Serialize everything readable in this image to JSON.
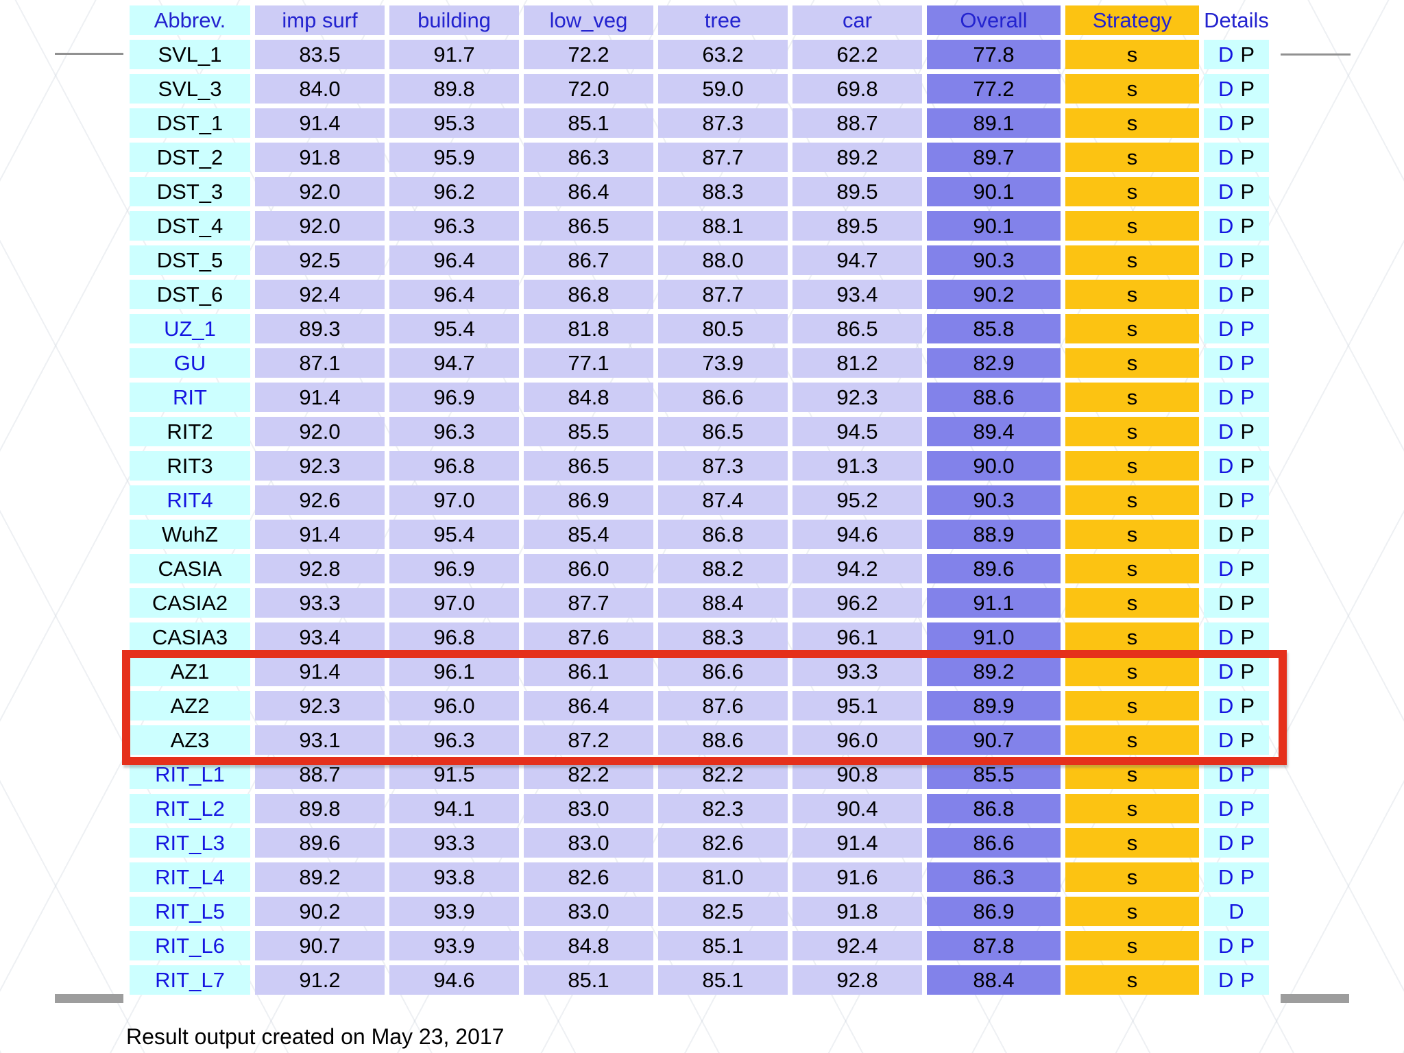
{
  "page": {
    "footer_note": "Result output created on May 23, 2017"
  },
  "colors": {
    "header_text": "#2323cf",
    "link_blue": "#1414e0",
    "cell_lavender": "#cdccf6",
    "cell_cyan": "#ccffff",
    "cell_overall_purple": "#8282ea",
    "cell_strategy_gold": "#fcc312",
    "annotation_red": "#e5301b"
  },
  "table": {
    "columns": [
      {
        "label": "Abbrev.",
        "type": "abbrev"
      },
      {
        "label": "imp surf",
        "type": "data"
      },
      {
        "label": "building",
        "type": "data"
      },
      {
        "label": "low_veg",
        "type": "data"
      },
      {
        "label": "tree",
        "type": "data"
      },
      {
        "label": "car",
        "type": "data"
      },
      {
        "label": "Overall",
        "type": "overall"
      },
      {
        "label": "Strategy",
        "type": "strategy"
      },
      {
        "label": "Details",
        "type": "details"
      }
    ],
    "rows": [
      {
        "abbrev": "SVL_1",
        "abbrev_link": false,
        "values": [
          "83.5",
          "91.7",
          "72.2",
          "63.2",
          "62.2"
        ],
        "overall": "77.8",
        "strategy": "s",
        "details": [
          {
            "label": "D",
            "link": true
          },
          {
            "label": "P",
            "link": false
          }
        ]
      },
      {
        "abbrev": "SVL_3",
        "abbrev_link": false,
        "values": [
          "84.0",
          "89.8",
          "72.0",
          "59.0",
          "69.8"
        ],
        "overall": "77.2",
        "strategy": "s",
        "details": [
          {
            "label": "D",
            "link": true
          },
          {
            "label": "P",
            "link": false
          }
        ]
      },
      {
        "abbrev": "DST_1",
        "abbrev_link": false,
        "values": [
          "91.4",
          "95.3",
          "85.1",
          "87.3",
          "88.7"
        ],
        "overall": "89.1",
        "strategy": "s",
        "details": [
          {
            "label": "D",
            "link": true
          },
          {
            "label": "P",
            "link": false
          }
        ]
      },
      {
        "abbrev": "DST_2",
        "abbrev_link": false,
        "values": [
          "91.8",
          "95.9",
          "86.3",
          "87.7",
          "89.2"
        ],
        "overall": "89.7",
        "strategy": "s",
        "details": [
          {
            "label": "D",
            "link": true
          },
          {
            "label": "P",
            "link": false
          }
        ]
      },
      {
        "abbrev": "DST_3",
        "abbrev_link": false,
        "values": [
          "92.0",
          "96.2",
          "86.4",
          "88.3",
          "89.5"
        ],
        "overall": "90.1",
        "strategy": "s",
        "details": [
          {
            "label": "D",
            "link": true
          },
          {
            "label": "P",
            "link": false
          }
        ]
      },
      {
        "abbrev": "DST_4",
        "abbrev_link": false,
        "values": [
          "92.0",
          "96.3",
          "86.5",
          "88.1",
          "89.5"
        ],
        "overall": "90.1",
        "strategy": "s",
        "details": [
          {
            "label": "D",
            "link": true
          },
          {
            "label": "P",
            "link": false
          }
        ]
      },
      {
        "abbrev": "DST_5",
        "abbrev_link": false,
        "values": [
          "92.5",
          "96.4",
          "86.7",
          "88.0",
          "94.7"
        ],
        "overall": "90.3",
        "strategy": "s",
        "details": [
          {
            "label": "D",
            "link": true
          },
          {
            "label": "P",
            "link": false
          }
        ]
      },
      {
        "abbrev": "DST_6",
        "abbrev_link": false,
        "values": [
          "92.4",
          "96.4",
          "86.8",
          "87.7",
          "93.4"
        ],
        "overall": "90.2",
        "strategy": "s",
        "details": [
          {
            "label": "D",
            "link": true
          },
          {
            "label": "P",
            "link": false
          }
        ]
      },
      {
        "abbrev": "UZ_1",
        "abbrev_link": true,
        "values": [
          "89.3",
          "95.4",
          "81.8",
          "80.5",
          "86.5"
        ],
        "overall": "85.8",
        "strategy": "s",
        "details": [
          {
            "label": "D",
            "link": true
          },
          {
            "label": "P",
            "link": true
          }
        ]
      },
      {
        "abbrev": "GU",
        "abbrev_link": true,
        "values": [
          "87.1",
          "94.7",
          "77.1",
          "73.9",
          "81.2"
        ],
        "overall": "82.9",
        "strategy": "s",
        "details": [
          {
            "label": "D",
            "link": true
          },
          {
            "label": "P",
            "link": true
          }
        ]
      },
      {
        "abbrev": "RIT",
        "abbrev_link": true,
        "values": [
          "91.4",
          "96.9",
          "84.8",
          "86.6",
          "92.3"
        ],
        "overall": "88.6",
        "strategy": "s",
        "details": [
          {
            "label": "D",
            "link": true
          },
          {
            "label": "P",
            "link": true
          }
        ]
      },
      {
        "abbrev": "RIT2",
        "abbrev_link": false,
        "values": [
          "92.0",
          "96.3",
          "85.5",
          "86.5",
          "94.5"
        ],
        "overall": "89.4",
        "strategy": "s",
        "details": [
          {
            "label": "D",
            "link": true
          },
          {
            "label": "P",
            "link": false
          }
        ]
      },
      {
        "abbrev": "RIT3",
        "abbrev_link": false,
        "values": [
          "92.3",
          "96.8",
          "86.5",
          "87.3",
          "91.3"
        ],
        "overall": "90.0",
        "strategy": "s",
        "details": [
          {
            "label": "D",
            "link": true
          },
          {
            "label": "P",
            "link": false
          }
        ]
      },
      {
        "abbrev": "RIT4",
        "abbrev_link": true,
        "values": [
          "92.6",
          "97.0",
          "86.9",
          "87.4",
          "95.2"
        ],
        "overall": "90.3",
        "strategy": "s",
        "details": [
          {
            "label": "D",
            "link": false
          },
          {
            "label": "P",
            "link": true
          }
        ]
      },
      {
        "abbrev": "WuhZ",
        "abbrev_link": false,
        "values": [
          "91.4",
          "95.4",
          "85.4",
          "86.8",
          "94.6"
        ],
        "overall": "88.9",
        "strategy": "s",
        "details": [
          {
            "label": "D",
            "link": false
          },
          {
            "label": "P",
            "link": false
          }
        ]
      },
      {
        "abbrev": "CASIA",
        "abbrev_link": false,
        "values": [
          "92.8",
          "96.9",
          "86.0",
          "88.2",
          "94.2"
        ],
        "overall": "89.6",
        "strategy": "s",
        "details": [
          {
            "label": "D",
            "link": true
          },
          {
            "label": "P",
            "link": false
          }
        ]
      },
      {
        "abbrev": "CASIA2",
        "abbrev_link": false,
        "values": [
          "93.3",
          "97.0",
          "87.7",
          "88.4",
          "96.2"
        ],
        "overall": "91.1",
        "strategy": "s",
        "details": [
          {
            "label": "D",
            "link": false
          },
          {
            "label": "P",
            "link": false
          }
        ]
      },
      {
        "abbrev": "CASIA3",
        "abbrev_link": false,
        "values": [
          "93.4",
          "96.8",
          "87.6",
          "88.3",
          "96.1"
        ],
        "overall": "91.0",
        "strategy": "s",
        "details": [
          {
            "label": "D",
            "link": true
          },
          {
            "label": "P",
            "link": false
          }
        ]
      },
      {
        "abbrev": "AZ1",
        "abbrev_link": false,
        "values": [
          "91.4",
          "96.1",
          "86.1",
          "86.6",
          "93.3"
        ],
        "overall": "89.2",
        "strategy": "s",
        "details": [
          {
            "label": "D",
            "link": true
          },
          {
            "label": "P",
            "link": false
          }
        ]
      },
      {
        "abbrev": "AZ2",
        "abbrev_link": false,
        "values": [
          "92.3",
          "96.0",
          "86.4",
          "87.6",
          "95.1"
        ],
        "overall": "89.9",
        "strategy": "s",
        "details": [
          {
            "label": "D",
            "link": true
          },
          {
            "label": "P",
            "link": false
          }
        ]
      },
      {
        "abbrev": "AZ3",
        "abbrev_link": false,
        "values": [
          "93.1",
          "96.3",
          "87.2",
          "88.6",
          "96.0"
        ],
        "overall": "90.7",
        "strategy": "s",
        "details": [
          {
            "label": "D",
            "link": true
          },
          {
            "label": "P",
            "link": false
          }
        ]
      },
      {
        "abbrev": "RIT_L1",
        "abbrev_link": true,
        "values": [
          "88.7",
          "91.5",
          "82.2",
          "82.2",
          "90.8"
        ],
        "overall": "85.5",
        "strategy": "s",
        "details": [
          {
            "label": "D",
            "link": true
          },
          {
            "label": "P",
            "link": true
          }
        ]
      },
      {
        "abbrev": "RIT_L2",
        "abbrev_link": true,
        "values": [
          "89.8",
          "94.1",
          "83.0",
          "82.3",
          "90.4"
        ],
        "overall": "86.8",
        "strategy": "s",
        "details": [
          {
            "label": "D",
            "link": true
          },
          {
            "label": "P",
            "link": true
          }
        ]
      },
      {
        "abbrev": "RIT_L3",
        "abbrev_link": true,
        "values": [
          "89.6",
          "93.3",
          "83.0",
          "82.6",
          "91.4"
        ],
        "overall": "86.6",
        "strategy": "s",
        "details": [
          {
            "label": "D",
            "link": true
          },
          {
            "label": "P",
            "link": true
          }
        ]
      },
      {
        "abbrev": "RIT_L4",
        "abbrev_link": true,
        "values": [
          "89.2",
          "93.8",
          "82.6",
          "81.0",
          "91.6"
        ],
        "overall": "86.3",
        "strategy": "s",
        "details": [
          {
            "label": "D",
            "link": true
          },
          {
            "label": "P",
            "link": true
          }
        ]
      },
      {
        "abbrev": "RIT_L5",
        "abbrev_link": true,
        "values": [
          "90.2",
          "93.9",
          "83.0",
          "82.5",
          "91.8"
        ],
        "overall": "86.9",
        "strategy": "s",
        "details": [
          {
            "label": "D",
            "link": true
          }
        ]
      },
      {
        "abbrev": "RIT_L6",
        "abbrev_link": true,
        "values": [
          "90.7",
          "93.9",
          "84.8",
          "85.1",
          "92.4"
        ],
        "overall": "87.8",
        "strategy": "s",
        "details": [
          {
            "label": "D",
            "link": true
          },
          {
            "label": "P",
            "link": true
          }
        ]
      },
      {
        "abbrev": "RIT_L7",
        "abbrev_link": true,
        "values": [
          "91.2",
          "94.6",
          "85.1",
          "85.1",
          "92.8"
        ],
        "overall": "88.4",
        "strategy": "s",
        "details": [
          {
            "label": "D",
            "link": true
          },
          {
            "label": "P",
            "link": true
          }
        ]
      }
    ]
  },
  "annotation": {
    "highlighted_rows": [
      "AZ1",
      "AZ2",
      "AZ3"
    ],
    "color": "#e5301b"
  }
}
